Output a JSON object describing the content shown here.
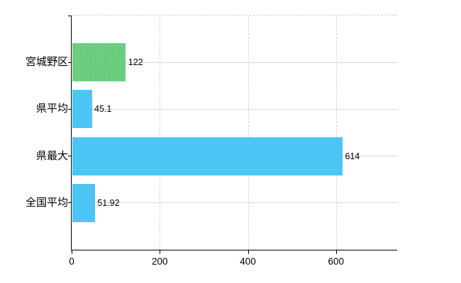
{
  "chart_data": {
    "type": "bar",
    "orientation": "horizontal",
    "title": "",
    "xlabel": "",
    "ylabel": "",
    "categories": [
      "宮城野区",
      "県平均",
      "県最大",
      "全国平均"
    ],
    "values": [
      122,
      45.1,
      614,
      51.92
    ],
    "value_labels": [
      "122",
      "45.1",
      "614",
      "51.92"
    ],
    "bar_color_keys": [
      "highlight",
      "normal",
      "normal",
      "normal"
    ],
    "xlim": [
      0,
      738
    ],
    "x_ticks": [
      0,
      200,
      400,
      600
    ],
    "x_tick_labels": [
      "0",
      "200",
      "400",
      "600"
    ],
    "grid": {
      "horizontal_solid_at_category_centers": true,
      "vertical_dashed_at_ticks": true,
      "top_border_dashed": true
    },
    "legend": "none",
    "colors": {
      "normal": "#3bbcf0",
      "highlight": "#68ca7c",
      "grid_solid": "#cfd6cf",
      "grid_dashed": "#d4d2d4",
      "axis": "#000000",
      "text": "#000000",
      "background": "#ffffff"
    }
  }
}
